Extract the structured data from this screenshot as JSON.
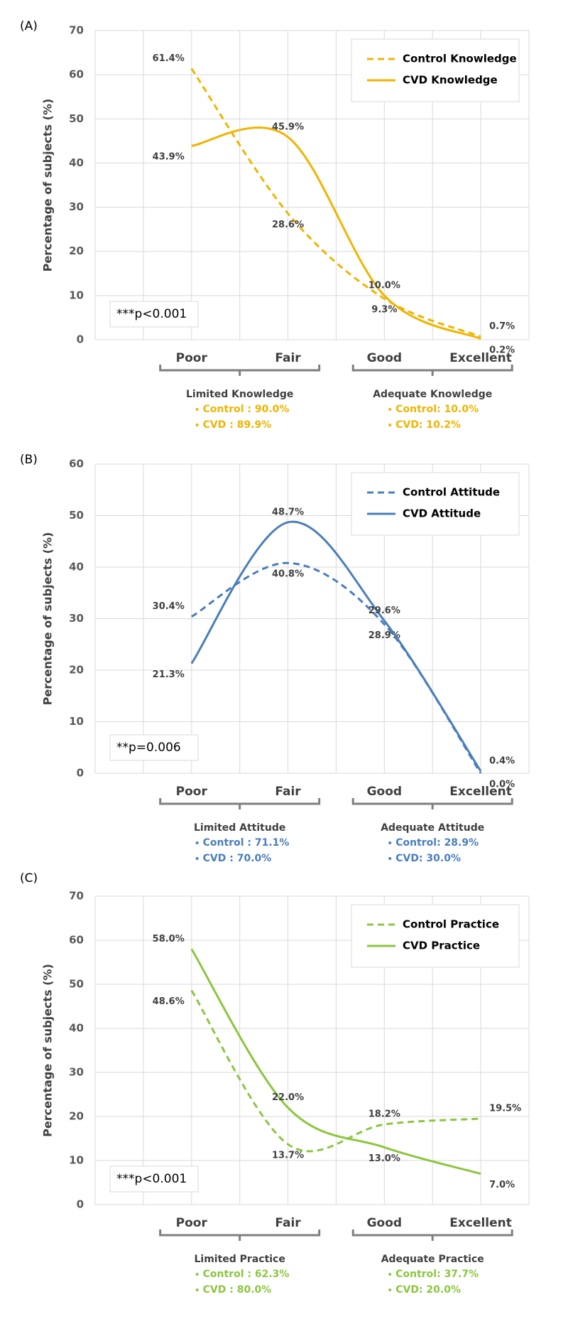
{
  "chart_data": [
    {
      "type": "line",
      "panel_label": "(A)",
      "y_label": "Percentage of subjects (%)",
      "categories": [
        "Poor",
        "Fair",
        "Good",
        "Excellent"
      ],
      "series": [
        {
          "name": "Control Knowledge",
          "color": "#f0b400",
          "dashed": true,
          "values": [
            61.4,
            28.6,
            9.3,
            0.7
          ],
          "value_labels": [
            "61.4%",
            "28.6%",
            "9.3%",
            "0.7%"
          ]
        },
        {
          "name": "CVD Knowledge",
          "color": "#f0b400",
          "dashed": false,
          "values": [
            43.9,
            45.9,
            10.0,
            0.2
          ],
          "value_labels": [
            "43.9%",
            "45.9%",
            "10.0%",
            "0.2%"
          ]
        }
      ],
      "ylim": [
        0,
        70
      ],
      "yticks": [
        0,
        10,
        20,
        30,
        40,
        50,
        60,
        70
      ],
      "grid": true,
      "legend": "upper right",
      "annotation": "***p<0.001",
      "groups": [
        {
          "label": "Limited Knowledge",
          "items": [
            "Control : 90.0%",
            "CVD : 89.9%"
          ]
        },
        {
          "label": "Adequate Knowledge",
          "items": [
            "Control: 10.0%",
            "CVD: 10.2%"
          ]
        }
      ]
    },
    {
      "type": "line",
      "panel_label": "(B)",
      "y_label": "Percentage of subjects (%)",
      "categories": [
        "Poor",
        "Fair",
        "Good",
        "Excellent"
      ],
      "series": [
        {
          "name": "Control Attitude",
          "color": "#4a7ebb",
          "dashed": true,
          "values": [
            30.4,
            40.8,
            28.9,
            0.0
          ],
          "value_labels": [
            "30.4%",
            "40.8%",
            "28.9%",
            "0.0%"
          ]
        },
        {
          "name": "CVD Attitude",
          "color": "#4a7ebb",
          "dashed": false,
          "values": [
            21.3,
            48.7,
            29.6,
            0.4
          ],
          "value_labels": [
            "21.3%",
            "48.7%",
            "29.6%",
            "0.4%"
          ]
        }
      ],
      "ylim": [
        0,
        60
      ],
      "yticks": [
        0,
        10,
        20,
        30,
        40,
        50,
        60
      ],
      "grid": true,
      "legend": "upper right",
      "annotation": "**p=0.006",
      "groups": [
        {
          "label": "Limited Attitude",
          "items": [
            "Control : 71.1%",
            "CVD : 70.0%"
          ]
        },
        {
          "label": "Adequate Attitude",
          "items": [
            "Control: 28.9%",
            "CVD: 30.0%"
          ]
        }
      ]
    },
    {
      "type": "line",
      "panel_label": "(C)",
      "y_label": "Percentage of subjects (%)",
      "categories": [
        "Poor",
        "Fair",
        "Good",
        "Excellent"
      ],
      "series": [
        {
          "name": "Control Practice",
          "color": "#8cc63f",
          "dashed": true,
          "values": [
            48.6,
            13.7,
            18.2,
            19.5
          ],
          "value_labels": [
            "48.6%",
            "13.7%",
            "18.2%",
            "19.5%"
          ]
        },
        {
          "name": "CVD Practice",
          "color": "#8cc63f",
          "dashed": false,
          "values": [
            58.0,
            22.0,
            13.0,
            7.0
          ],
          "value_labels": [
            "58.0%",
            "22.0%",
            "13.0%",
            "7.0%"
          ]
        }
      ],
      "ylim": [
        0,
        70
      ],
      "yticks": [
        0,
        10,
        20,
        30,
        40,
        50,
        60,
        70
      ],
      "grid": true,
      "legend": "upper right",
      "annotation": "***p<0.001",
      "groups": [
        {
          "label": "Limited Practice",
          "items": [
            "Control : 62.3%",
            "CVD : 80.0%"
          ]
        },
        {
          "label": "Adequate Practice",
          "items": [
            "Control: 37.7%",
            "CVD: 20.0%"
          ]
        }
      ]
    }
  ]
}
